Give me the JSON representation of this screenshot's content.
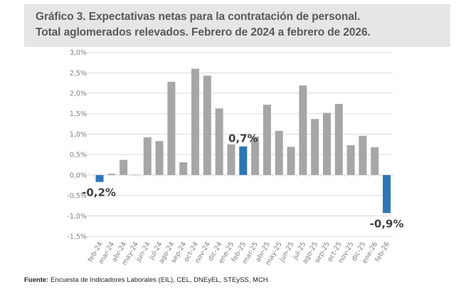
{
  "header": {
    "title_line1": "Gráfico 3. Expectativas netas para la contratación de personal.",
    "title_line2": "Total aglomerados relevados. Febrero de 2024 a febrero de 2026."
  },
  "source": {
    "label": "Fuente:",
    "text": " Encuesta de Indicadores Laborales (EIL), CEL, DNEyEL, STEySS, MCH."
  },
  "colors": {
    "bar_default": "#a6a6a6",
    "bar_highlight": "#2e75b6",
    "grid": "#d9d9d9",
    "title_bg": "#e6e6e6"
  },
  "chart_data": {
    "type": "bar",
    "title": "Gráfico 3. Expectativas netas para la contratación de personal. Total aglomerados relevados. Febrero de 2024 a febrero de 2026.",
    "xlabel": "",
    "ylabel": "",
    "ylim": [
      -1.5,
      3.0
    ],
    "ytick_step": 0.5,
    "ytick_labels": [
      "3,0%",
      "2,5%",
      "2,0%",
      "1,5%",
      "1,0%",
      "0,5%",
      "0,0%",
      "-0,5%",
      "-1,0%",
      "-1,5%"
    ],
    "ytick_values": [
      3.0,
      2.5,
      2.0,
      1.5,
      1.0,
      0.5,
      0.0,
      -0.5,
      -1.0,
      -1.5
    ],
    "grid": true,
    "legend": "none",
    "categories": [
      "feb-24",
      "mar-24",
      "abr-24",
      "may-24",
      "jun-24",
      "jul-24",
      "ago-24",
      "sep-24",
      "oct-24",
      "nov-24",
      "dic-24",
      "ene-25",
      "feb-25",
      "mar-25",
      "abr-25",
      "may-25",
      "jun-25",
      "jul-25",
      "ago-25",
      "sep-25",
      "oct-25",
      "nov-25",
      "dic-25",
      "ene-26",
      "feb-26"
    ],
    "values": [
      -0.17,
      0.03,
      0.37,
      0.01,
      0.92,
      0.83,
      2.28,
      0.31,
      2.6,
      2.43,
      1.63,
      0.75,
      0.7,
      0.94,
      1.72,
      1.08,
      0.69,
      2.19,
      1.37,
      1.52,
      1.74,
      0.73,
      0.96,
      0.68,
      -0.93
    ],
    "highlighted": [
      0,
      12,
      24
    ],
    "data_labels": [
      {
        "index": 0,
        "text": "-0,2%",
        "position": "below-left"
      },
      {
        "index": 12,
        "text": "0,7%",
        "position": "above"
      },
      {
        "index": 24,
        "text": "-0,9%",
        "position": "below"
      }
    ]
  }
}
